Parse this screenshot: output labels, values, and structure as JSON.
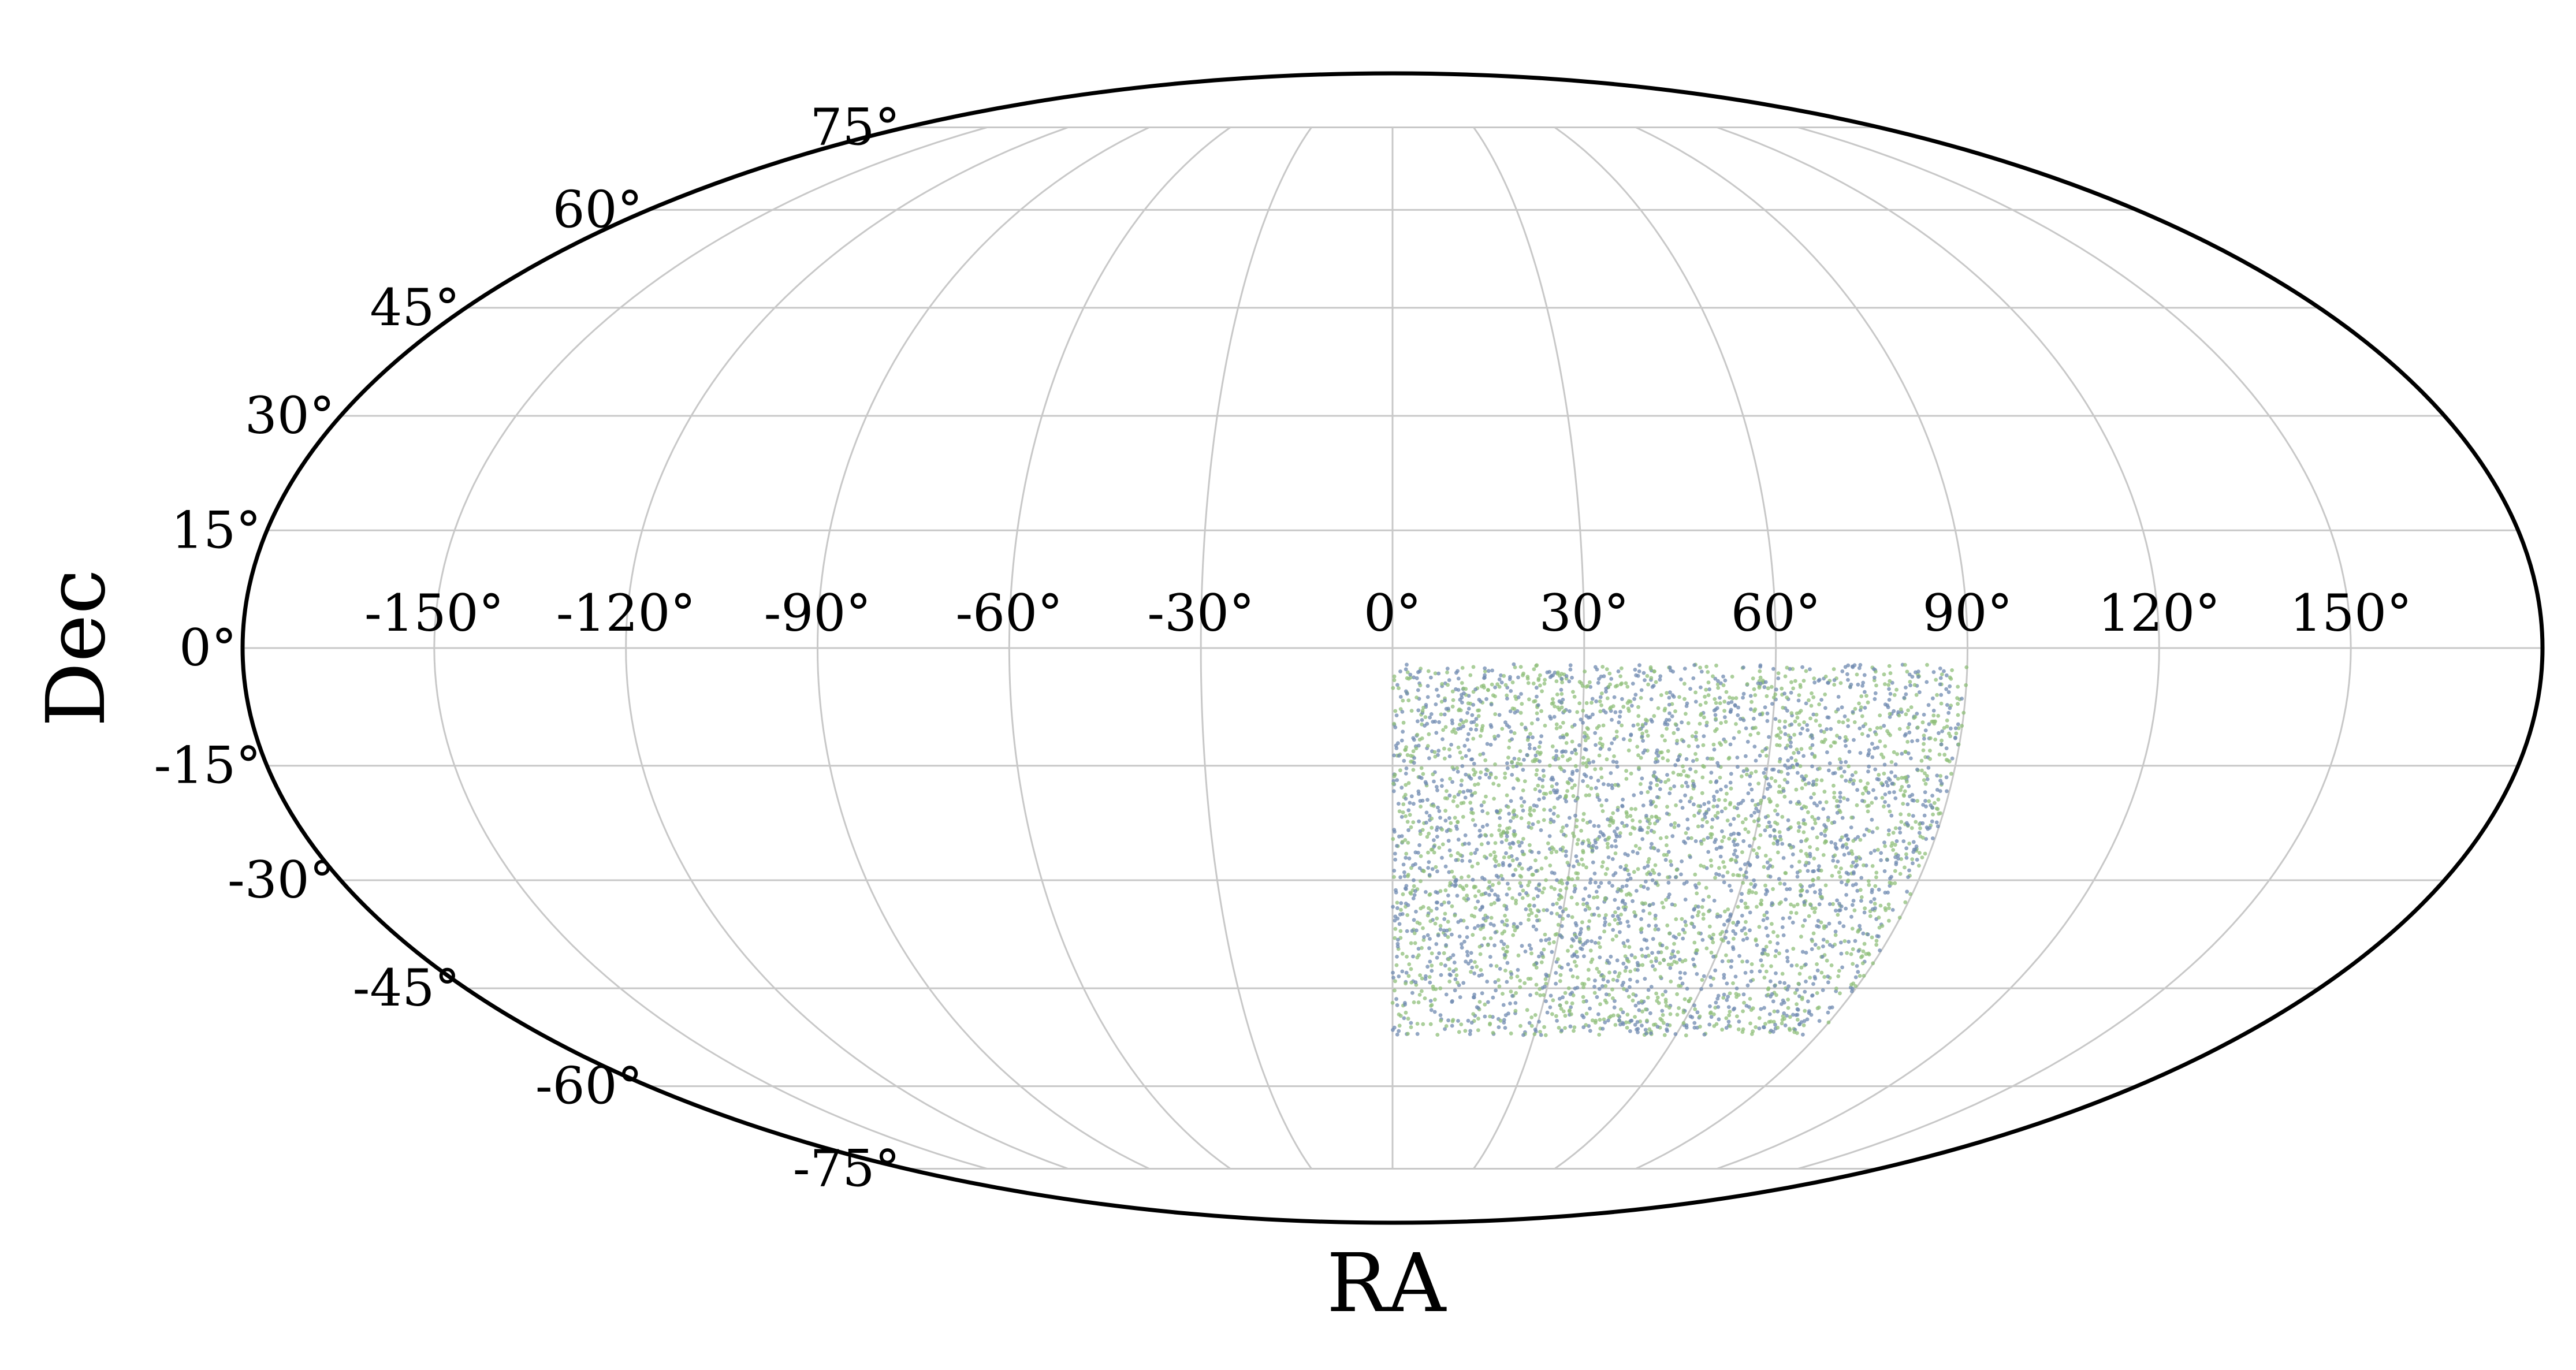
{
  "chart_data": {
    "type": "scatter",
    "projection": "mollweide",
    "xlabel": "RA",
    "ylabel": "Dec",
    "x_ticks": [
      "-150°",
      "-120°",
      "-90°",
      "-60°",
      "-30°",
      "0°",
      "30°",
      "60°",
      "90°",
      "120°",
      "150°"
    ],
    "y_ticks": [
      "75°",
      "60°",
      "45°",
      "30°",
      "15°",
      "0°",
      "-15°",
      "-30°",
      "-45°",
      "-60°",
      "-75°"
    ],
    "ra_range": [
      -180,
      180
    ],
    "dec_range": [
      -90,
      90
    ],
    "grid": true,
    "series": [
      {
        "ra_range": [
          0,
          90
        ],
        "dec_range": [
          -52,
          -2
        ],
        "point_count": 4000,
        "colors": [
          "#6f89b0",
          "#8fbf7a"
        ]
      }
    ]
  }
}
